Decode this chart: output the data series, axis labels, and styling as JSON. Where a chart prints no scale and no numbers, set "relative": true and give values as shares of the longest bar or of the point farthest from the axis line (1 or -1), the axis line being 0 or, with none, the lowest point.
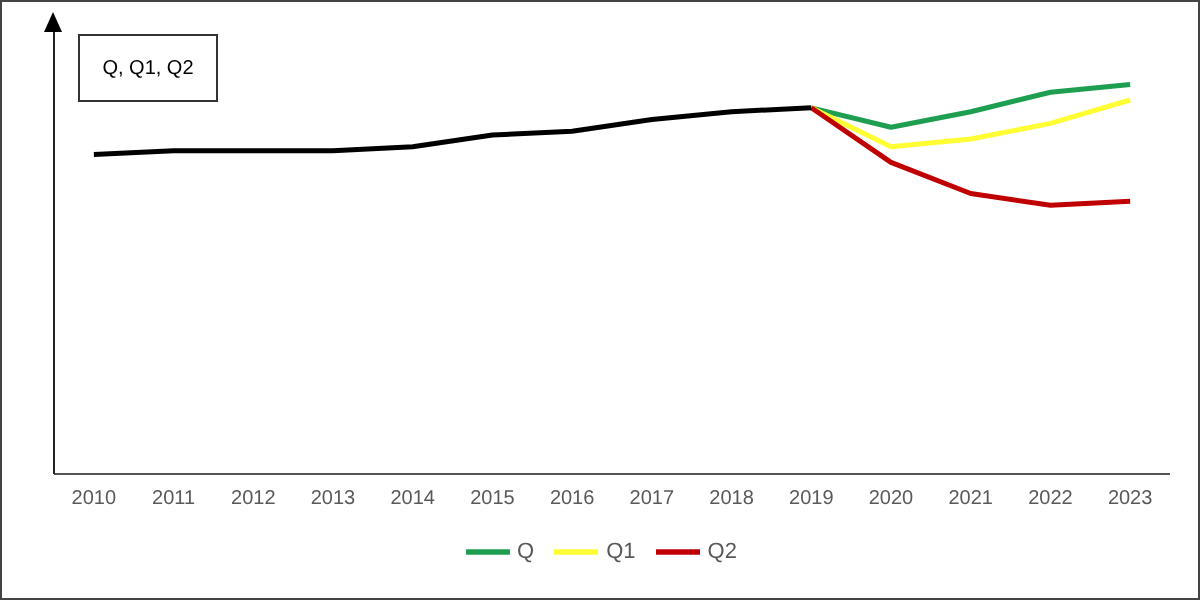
{
  "chart_data": {
    "type": "line",
    "relative": true,
    "ylabel": "Q, Q1, Q2",
    "categories": [
      "2010",
      "2011",
      "2012",
      "2013",
      "2014",
      "2015",
      "2016",
      "2017",
      "2018",
      "2019",
      "2020",
      "2021",
      "2022",
      "2023"
    ],
    "series": [
      {
        "name": "Q",
        "color": "#1e9e50",
        "values": [
          null,
          null,
          null,
          null,
          null,
          null,
          null,
          null,
          null,
          0.94,
          0.89,
          0.93,
          0.98,
          1
        ]
      },
      {
        "name": "Q1",
        "color": "#ffff33",
        "values": [
          null,
          null,
          null,
          null,
          null,
          null,
          null,
          null,
          null,
          0.94,
          0.84,
          0.86,
          0.9,
          0.96
        ]
      },
      {
        "name": "Q2",
        "color": "#c00000",
        "values": [
          null,
          null,
          null,
          null,
          null,
          null,
          null,
          null,
          null,
          0.94,
          0.8,
          0.72,
          0.69,
          0.7
        ]
      },
      {
        "color": "#000000",
        "values": [
          0.82,
          0.83,
          0.83,
          0.83,
          0.84,
          0.87,
          0.88,
          0.91,
          0.93,
          0.94,
          null,
          null,
          null,
          null
        ]
      }
    ],
    "legend": "bottom",
    "grid": false,
    "marker": "none",
    "line_style": "solid"
  }
}
